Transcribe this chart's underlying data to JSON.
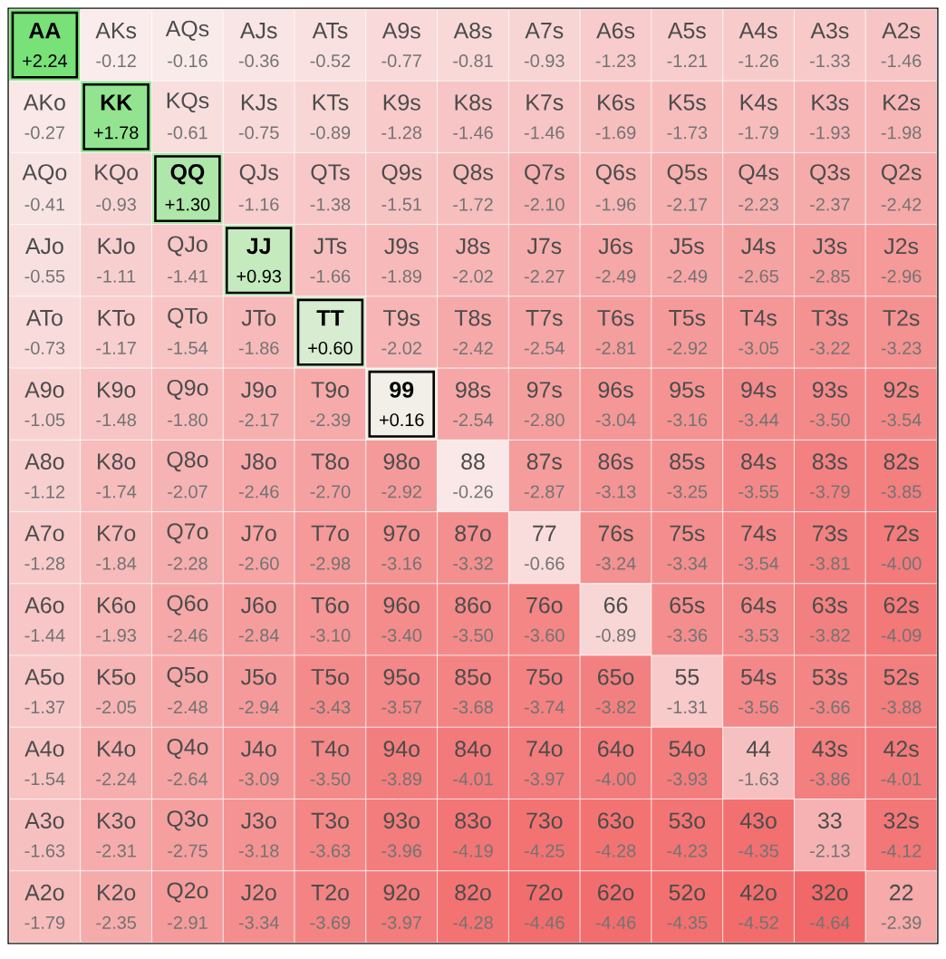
{
  "chart_data": {
    "type": "heatmap",
    "categories": [
      null,
      null,
      null,
      null,
      null,
      null,
      null,
      null,
      null,
      null,
      null,
      null,
      null
    ],
    "y_categories": [
      null,
      null,
      null,
      null,
      null,
      null,
      null,
      null,
      null,
      null,
      null,
      null,
      null
    ],
    "cells": [
      [
        2.24,
        -0.12,
        -0.16,
        -0.36,
        -0.52,
        -0.77,
        -0.81,
        -0.93,
        -1.23,
        -1.21,
        -1.26,
        -1.33,
        -1.46
      ],
      [
        -0.27,
        1.78,
        -0.61,
        -0.75,
        -0.89,
        -1.28,
        -1.46,
        -1.46,
        -1.69,
        -1.73,
        -1.79,
        -1.93,
        -1.98
      ],
      [
        -0.41,
        -0.93,
        1.3,
        -1.16,
        -1.38,
        -1.51,
        -1.72,
        -2.1,
        -1.96,
        -2.17,
        -2.23,
        -2.37,
        -2.42
      ],
      [
        -0.55,
        -1.11,
        -1.41,
        0.93,
        -1.66,
        -1.89,
        -2.02,
        -2.27,
        -2.49,
        -2.49,
        -2.65,
        -2.85,
        -2.96
      ],
      [
        -0.73,
        -1.17,
        -1.54,
        -1.86,
        0.6,
        -2.02,
        -2.42,
        -2.54,
        -2.81,
        -2.92,
        -3.05,
        -3.22,
        -3.23
      ],
      [
        -1.05,
        -1.48,
        -1.8,
        -2.17,
        -2.39,
        0.16,
        -2.54,
        -2.8,
        -3.04,
        -3.16,
        -3.44,
        -3.5,
        -3.54
      ],
      [
        -1.12,
        -1.74,
        -2.07,
        -2.46,
        -2.7,
        -2.92,
        -0.26,
        -2.87,
        -3.13,
        -3.25,
        -3.55,
        -3.79,
        -3.85
      ],
      [
        -1.28,
        -1.84,
        -2.28,
        -2.6,
        -2.98,
        -3.16,
        -3.32,
        -0.66,
        -3.24,
        -3.34,
        -3.54,
        -3.81,
        -4.0
      ],
      [
        -1.44,
        -1.93,
        -2.46,
        -2.84,
        -3.1,
        -3.4,
        -3.5,
        -3.6,
        -0.89,
        -3.36,
        -3.53,
        -3.82,
        -4.09
      ],
      [
        -1.37,
        -2.05,
        -2.48,
        -2.94,
        -3.43,
        -3.57,
        -3.68,
        -3.74,
        -3.82,
        -1.31,
        -3.56,
        -3.66,
        -3.88
      ],
      [
        -1.54,
        -2.24,
        -2.64,
        -3.09,
        -3.5,
        -3.89,
        -4.01,
        -3.97,
        -4.0,
        -3.93,
        -1.63,
        -3.86,
        -4.01
      ],
      [
        -1.63,
        -2.31,
        -2.75,
        -3.18,
        -3.63,
        -3.96,
        -4.19,
        -4.25,
        -4.28,
        -4.23,
        -4.35,
        -2.13,
        -4.12
      ],
      [
        -1.79,
        -2.35,
        -2.91,
        -3.34,
        -3.69,
        -3.97,
        -4.28,
        -4.46,
        -4.46,
        -4.35,
        -4.52,
        -4.64,
        -2.39
      ]
    ],
    "cell_labels": [
      [
        "+2.24",
        "-0.12",
        "-0.16",
        "-0.36",
        "-0.52",
        "-0.77",
        "-0.81",
        "-0.93",
        "-1.23",
        "-1.21",
        "-1.26",
        "-1.33",
        "-1.46"
      ],
      [
        "-0.27",
        "+1.78",
        "-0.61",
        "-0.75",
        "-0.89",
        "-1.28",
        "-1.46",
        "-1.46",
        "-1.69",
        "-1.73",
        "-1.79",
        "-1.93",
        "-1.98"
      ],
      [
        "-0.41",
        "-0.93",
        "+1.30",
        "-1.16",
        "-1.38",
        "-1.51",
        "-1.72",
        "-2.10",
        "-1.96",
        "-2.17",
        "-2.23",
        "-2.37",
        "-2.42"
      ],
      [
        "-0.55",
        "-1.11",
        "-1.41",
        "+0.93",
        "-1.66",
        "-1.89",
        "-2.02",
        "-2.27",
        "-2.49",
        "-2.49",
        "-2.65",
        "-2.85",
        "-2.96"
      ],
      [
        "-0.73",
        "-1.17",
        "-1.54",
        "-1.86",
        "+0.60",
        "-2.02",
        "-2.42",
        "-2.54",
        "-2.81",
        "-2.92",
        "-3.05",
        "-3.22",
        "-3.23"
      ],
      [
        "-1.05",
        "-1.48",
        "-1.80",
        "-2.17",
        "-2.39",
        "+0.16",
        "-2.54",
        "-2.80",
        "-3.04",
        "-3.16",
        "-3.44",
        "-3.50",
        "-3.54"
      ],
      [
        "-1.12",
        "-1.74",
        "-2.07",
        "-2.46",
        "-2.70",
        "-2.92",
        "-0.26",
        "-2.87",
        "-3.13",
        "-3.25",
        "-3.55",
        "-3.79",
        "-3.85"
      ],
      [
        "-1.28",
        "-1.84",
        "-2.28",
        "-2.60",
        "-2.98",
        "-3.16",
        "-3.32",
        "-0.66",
        "-3.24",
        "-3.34",
        "-3.54",
        "-3.81",
        "-4.00"
      ],
      [
        "-1.44",
        "-1.93",
        "-2.46",
        "-2.84",
        "-3.10",
        "-3.40",
        "-3.50",
        "-3.60",
        "-0.89",
        "-3.36",
        "-3.53",
        "-3.82",
        "-4.09"
      ],
      [
        "-1.37",
        "-2.05",
        "-2.48",
        "-2.94",
        "-3.43",
        "-3.57",
        "-3.68",
        "-3.74",
        "-3.82",
        "-1.31",
        "-3.56",
        "-3.66",
        "-3.88"
      ],
      [
        "-1.54",
        "-2.24",
        "-2.64",
        "-3.09",
        "-3.50",
        "-3.89",
        "-4.01",
        "-3.97",
        "-4.00",
        "-3.93",
        "-1.63",
        "-3.86",
        "-4.01"
      ],
      [
        "-1.63",
        "-2.31",
        "-2.75",
        "-3.18",
        "-3.63",
        "-3.96",
        "-4.19",
        "-4.25",
        "-4.28",
        "-4.23",
        "-4.35",
        "-2.13",
        "-4.12"
      ],
      [
        "-1.79",
        "-2.35",
        "-2.91",
        "-3.34",
        "-3.69",
        "-3.97",
        "-4.28",
        "-4.46",
        "-4.46",
        "-4.35",
        "-4.52",
        "-4.64",
        "-2.39"
      ]
    ],
    "annotations": [
      "AA",
      "AKs",
      "AQs",
      "AJs",
      "ATs",
      "A9s",
      "A8s",
      "A7s",
      "A6s",
      "A5s",
      "A4s",
      "A3s",
      "A2s",
      "AKo",
      "KK",
      "KQs",
      "KJs",
      "KTs",
      "K9s",
      "K8s",
      "K7s",
      "K6s",
      "K5s",
      "K4s",
      "K3s",
      "K2s",
      "AQo",
      "KQo",
      "QQ",
      "QJs",
      "QTs",
      "Q9s",
      "Q8s",
      "Q7s",
      "Q6s",
      "Q5s",
      "Q4s",
      "Q3s",
      "Q2s",
      "AJo",
      "KJo",
      "QJo",
      "JJ",
      "JTs",
      "J9s",
      "J8s",
      "J7s",
      "J6s",
      "J5s",
      "J4s",
      "J3s",
      "J2s",
      "ATo",
      "KTo",
      "QTo",
      "JTo",
      "TT",
      "T9s",
      "T8s",
      "T7s",
      "T6s",
      "T5s",
      "T4s",
      "T3s",
      "T2s",
      "A9o",
      "K9o",
      "Q9o",
      "J9o",
      "T9o",
      "99",
      "98s",
      "97s",
      "96s",
      "95s",
      "94s",
      "93s",
      "92s",
      "A8o",
      "K8o",
      "Q8o",
      "J8o",
      "T8o",
      "98o",
      "88",
      "87s",
      "86s",
      "85s",
      "84s",
      "83s",
      "82s",
      "A7o",
      "K7o",
      "Q7o",
      "J7o",
      "T7o",
      "97o",
      "87o",
      "77",
      "76s",
      "75s",
      "74s",
      "73s",
      "72s",
      "A6o",
      "K6o",
      "Q6o",
      "J6o",
      "T6o",
      "96o",
      "86o",
      "76o",
      "66",
      "65s",
      "64s",
      "63s",
      "62s",
      "A5o",
      "K5o",
      "Q5o",
      "J5o",
      "T5o",
      "95o",
      "85o",
      "75o",
      "65o",
      "55",
      "54s",
      "53s",
      "52s",
      "A4o",
      "K4o",
      "Q4o",
      "J4o",
      "T4o",
      "94o",
      "84o",
      "74o",
      "64o",
      "54o",
      "44",
      "43s",
      "42s",
      "A3o",
      "K3o",
      "Q3o",
      "J3o",
      "T3o",
      "93o",
      "83o",
      "73o",
      "63o",
      "53o",
      "43o",
      "33",
      "32s",
      "A2o",
      "K2o",
      "Q2o",
      "J2o",
      "T2o",
      "92o",
      "82o",
      "72o",
      "62o",
      "52o",
      "42o",
      "32o",
      "22"
    ]
  }
}
